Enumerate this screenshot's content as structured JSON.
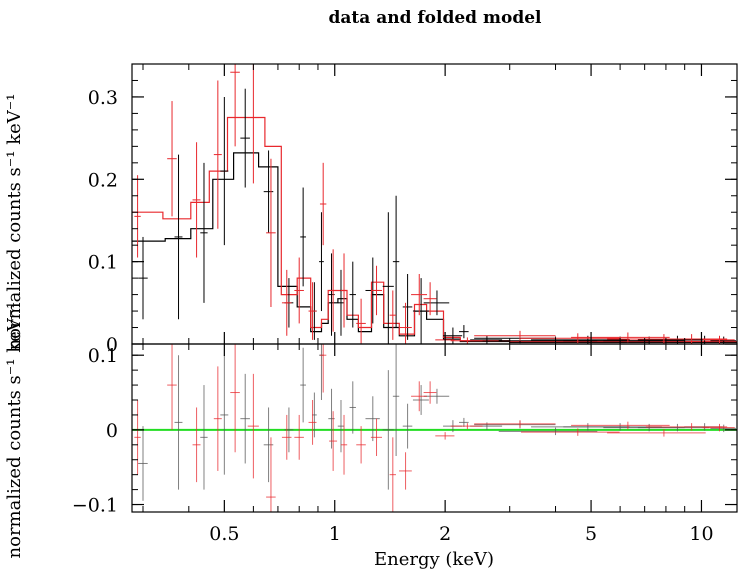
{
  "chart_data": {
    "type": "scatter",
    "title": "data and folded model",
    "xlabel": "Energy (keV)",
    "x_scale": "log",
    "xlim": [
      0.28,
      12.5
    ],
    "x_ticks": [
      {
        "value": 0.5,
        "label": "0.5"
      },
      {
        "value": 1,
        "label": "1"
      },
      {
        "value": 2,
        "label": "2"
      },
      {
        "value": 5,
        "label": "5"
      },
      {
        "value": 10,
        "label": "10"
      }
    ],
    "colors": {
      "data1": "#000000",
      "data2": "#e8282d",
      "zero_line": "#22dd22",
      "frame": "#000000"
    },
    "panels": [
      {
        "name": "spectrum",
        "ylabel": "normalized counts s⁻¹ keV⁻¹",
        "ylim": [
          0,
          0.34
        ],
        "y_ticks": [
          {
            "value": 0,
            "label": "0"
          },
          {
            "value": 0.1,
            "label": "0.1"
          },
          {
            "value": 0.2,
            "label": "0.2"
          },
          {
            "value": 0.3,
            "label": "0.3"
          }
        ],
        "series": [
          {
            "color": "#000000",
            "points": [
              [
                0.3,
                0.08,
                0.03,
                0.05
              ],
              [
                0.375,
                0.13,
                0.025,
                0.1
              ],
              [
                0.44,
                0.135,
                0.023,
                0.085
              ],
              [
                0.5,
                0.21,
                0.025,
                0.09
              ],
              [
                0.57,
                0.25,
                0.03,
                0.06
              ],
              [
                0.66,
                0.185,
                0.03,
                0.05
              ],
              [
                0.75,
                0.05,
                0.028,
                0.03
              ],
              [
                0.82,
                0.13,
                0.018,
                0.06
              ],
              [
                0.88,
                0.04,
                0.015,
                0.035
              ],
              [
                0.92,
                0.1,
                0.015,
                0.06
              ],
              [
                0.98,
                0.06,
                0.02,
                0.05
              ],
              [
                1.04,
                0.05,
                0.02,
                0.04
              ],
              [
                1.12,
                0.06,
                0.02,
                0.04
              ],
              [
                1.27,
                0.065,
                0.045,
                0.04
              ],
              [
                1.4,
                0.07,
                0.035,
                0.09
              ],
              [
                1.47,
                0.1,
                0.02,
                0.08
              ],
              [
                1.58,
                0.045,
                0.03,
                0.04
              ],
              [
                1.72,
                0.04,
                0.05,
                0.04
              ],
              [
                1.9,
                0.05,
                0.08,
                0.015
              ],
              [
                2.1,
                0.01,
                0.06,
                0.01
              ],
              [
                2.25,
                0.015,
                0.03,
                0.008
              ],
              [
                2.6,
                0.005,
                0.1,
                0.005
              ],
              [
                3.2,
                0.007,
                0.25,
                0.006
              ],
              [
                4.0,
                0.004,
                0.3,
                0.005
              ],
              [
                4.9,
                0.005,
                0.3,
                0.005
              ],
              [
                6.0,
                0.004,
                0.3,
                0.005
              ],
              [
                7.2,
                0.004,
                0.25,
                0.005
              ],
              [
                8.6,
                0.005,
                0.22,
                0.005
              ],
              [
                10.2,
                0.005,
                0.12,
                0.005
              ],
              [
                11.5,
                0.004,
                0.08,
                0.005
              ]
            ],
            "model_steps": [
              [
                0.28,
                0.125
              ],
              [
                0.345,
                0.128
              ],
              [
                0.405,
                0.14
              ],
              [
                0.465,
                0.2
              ],
              [
                0.53,
                0.232
              ],
              [
                0.62,
                0.215
              ],
              [
                0.7,
                0.07
              ],
              [
                0.79,
                0.045
              ],
              [
                0.86,
                0.015
              ],
              [
                0.92,
                0.025
              ],
              [
                0.96,
                0.05
              ],
              [
                1.02,
                0.055
              ],
              [
                1.08,
                0.03
              ],
              [
                1.16,
                0.015
              ],
              [
                1.26,
                0.06
              ],
              [
                1.36,
                0.02
              ],
              [
                1.5,
                0.01
              ],
              [
                1.65,
                0.04
              ],
              [
                1.78,
                0.03
              ],
              [
                1.98,
                0.006
              ],
              [
                2.2,
                0.003
              ],
              [
                3.0,
                0.002
              ],
              [
                12.5,
                0.002
              ]
            ]
          },
          {
            "color": "#e8282d",
            "points": [
              [
                0.29,
                0.155,
                0.02,
                0.05
              ],
              [
                0.36,
                0.225,
                0.03,
                0.07
              ],
              [
                0.42,
                0.175,
                0.025,
                0.07
              ],
              [
                0.48,
                0.23,
                0.025,
                0.09
              ],
              [
                0.535,
                0.33,
                0.03,
                0.09
              ],
              [
                0.6,
                0.275,
                0.035,
                0.08
              ],
              [
                0.67,
                0.135,
                0.03,
                0.09
              ],
              [
                0.74,
                0.05,
                0.03,
                0.04
              ],
              [
                0.8,
                0.065,
                0.03,
                0.04
              ],
              [
                0.87,
                0.04,
                0.025,
                0.035
              ],
              [
                0.93,
                0.17,
                0.02,
                0.05
              ],
              [
                0.99,
                0.065,
                0.025,
                0.05
              ],
              [
                1.06,
                0.065,
                0.02,
                0.045
              ],
              [
                1.18,
                0.025,
                0.03,
                0.03
              ],
              [
                1.3,
                0.065,
                0.035,
                0.03
              ],
              [
                1.44,
                0.035,
                0.02,
                0.03
              ],
              [
                1.56,
                0.02,
                0.04,
                0.03
              ],
              [
                1.7,
                0.06,
                0.05,
                0.025
              ],
              [
                1.82,
                0.055,
                0.04,
                0.02
              ],
              [
                2.0,
                0.005,
                0.06,
                0.005
              ],
              [
                2.3,
                0.004,
                0.1,
                0.004
              ],
              [
                3.2,
                0.01,
                0.25,
                0.006
              ],
              [
                4.6,
                0.007,
                0.3,
                0.006
              ],
              [
                6.3,
                0.008,
                0.3,
                0.006
              ],
              [
                7.9,
                0.006,
                0.3,
                0.006
              ],
              [
                9.4,
                0.006,
                0.25,
                0.006
              ],
              [
                11.2,
                0.005,
                0.1,
                0.005
              ]
            ],
            "model_steps": [
              [
                0.28,
                0.16
              ],
              [
                0.34,
                0.152
              ],
              [
                0.405,
                0.172
              ],
              [
                0.455,
                0.21
              ],
              [
                0.51,
                0.275
              ],
              [
                0.6,
                0.275
              ],
              [
                0.645,
                0.24
              ],
              [
                0.715,
                0.06
              ],
              [
                0.79,
                0.08
              ],
              [
                0.86,
                0.02
              ],
              [
                0.92,
                0.03
              ],
              [
                0.96,
                0.065
              ],
              [
                1.02,
                0.065
              ],
              [
                1.08,
                0.035
              ],
              [
                1.16,
                0.02
              ],
              [
                1.26,
                0.075
              ],
              [
                1.36,
                0.025
              ],
              [
                1.5,
                0.012
              ],
              [
                1.65,
                0.048
              ],
              [
                1.78,
                0.04
              ],
              [
                1.98,
                0.008
              ],
              [
                2.2,
                0.004
              ],
              [
                3.0,
                0.003
              ],
              [
                12.5,
                0.003
              ]
            ]
          }
        ]
      },
      {
        "name": "residuals",
        "ylabel": "normalized counts s⁻¹ keV⁻¹",
        "ylim": [
          -0.11,
          0.115
        ],
        "y_ticks": [
          {
            "value": -0.1,
            "label": "−0.1"
          },
          {
            "value": 0,
            "label": "0"
          },
          {
            "value": 0.1,
            "label": "0.1"
          }
        ],
        "zero_line": 0,
        "series": [
          {
            "color": "#555555",
            "points": [
              [
                0.3,
                -0.045,
                0.03,
                0.05
              ],
              [
                0.375,
                0.01,
                0.025,
                0.09
              ],
              [
                0.44,
                -0.01,
                0.023,
                0.07
              ],
              [
                0.5,
                0.02,
                0.025,
                0.08
              ],
              [
                0.57,
                0.015,
                0.03,
                0.06
              ],
              [
                0.66,
                -0.02,
                0.03,
                0.05
              ],
              [
                0.75,
                0.0,
                0.028,
                0.03
              ],
              [
                0.82,
                0.06,
                0.018,
                0.05
              ],
              [
                0.88,
                0.02,
                0.015,
                0.03
              ],
              [
                0.92,
                0.1,
                0.015,
                0.06
              ],
              [
                0.98,
                0.015,
                0.02,
                0.04
              ],
              [
                1.04,
                0.005,
                0.02,
                0.035
              ],
              [
                1.12,
                0.03,
                0.02,
                0.035
              ],
              [
                1.27,
                0.015,
                0.045,
                0.03
              ],
              [
                1.4,
                0.0,
                0.035,
                0.08
              ],
              [
                1.47,
                0.045,
                0.02,
                0.08
              ],
              [
                1.58,
                0.005,
                0.03,
                0.03
              ],
              [
                1.72,
                0.04,
                0.05,
                0.02
              ],
              [
                1.9,
                0.045,
                0.08,
                0.01
              ],
              [
                2.1,
                0.005,
                0.06,
                0.008
              ],
              [
                2.25,
                0.01,
                0.03,
                0.006
              ],
              [
                2.6,
                0.005,
                0.1,
                0.005
              ],
              [
                3.2,
                0.007,
                0.25,
                0.005
              ],
              [
                4.0,
                -0.002,
                0.3,
                0.005
              ],
              [
                4.9,
                0.004,
                0.3,
                0.005
              ],
              [
                6.0,
                0.004,
                0.3,
                0.005
              ],
              [
                7.2,
                0.003,
                0.25,
                0.005
              ],
              [
                8.6,
                0.003,
                0.22,
                0.005
              ],
              [
                10.2,
                0.004,
                0.12,
                0.005
              ],
              [
                11.5,
                0.002,
                0.08,
                0.005
              ]
            ]
          },
          {
            "color": "#e8282d",
            "points": [
              [
                0.29,
                -0.01,
                0.02,
                0.05
              ],
              [
                0.36,
                0.06,
                0.03,
                0.06
              ],
              [
                0.42,
                -0.02,
                0.025,
                0.05
              ],
              [
                0.48,
                0.015,
                0.025,
                0.07
              ],
              [
                0.535,
                0.05,
                0.03,
                0.08
              ],
              [
                0.6,
                0.005,
                0.035,
                0.07
              ],
              [
                0.67,
                -0.09,
                0.03,
                0.08
              ],
              [
                0.74,
                -0.01,
                0.03,
                0.03
              ],
              [
                0.8,
                -0.01,
                0.03,
                0.03
              ],
              [
                0.87,
                0.01,
                0.025,
                0.03
              ],
              [
                0.93,
                0.1,
                0.02,
                0.05
              ],
              [
                0.99,
                -0.015,
                0.025,
                0.04
              ],
              [
                1.06,
                -0.02,
                0.02,
                0.04
              ],
              [
                1.18,
                -0.02,
                0.03,
                0.025
              ],
              [
                1.3,
                -0.01,
                0.035,
                0.025
              ],
              [
                1.44,
                -0.06,
                0.02,
                0.05
              ],
              [
                1.56,
                -0.055,
                0.04,
                0.025
              ],
              [
                1.7,
                0.045,
                0.05,
                0.02
              ],
              [
                1.82,
                0.05,
                0.04,
                0.015
              ],
              [
                2.0,
                -0.008,
                0.06,
                0.005
              ],
              [
                2.3,
                0.005,
                0.1,
                0.004
              ],
              [
                3.2,
                0.008,
                0.25,
                0.005
              ],
              [
                4.6,
                -0.003,
                0.3,
                0.005
              ],
              [
                6.3,
                0.006,
                0.3,
                0.005
              ],
              [
                7.9,
                -0.004,
                0.3,
                0.005
              ],
              [
                9.4,
                0.004,
                0.25,
                0.005
              ],
              [
                11.2,
                0.003,
                0.1,
                0.005
              ]
            ]
          }
        ]
      }
    ]
  }
}
